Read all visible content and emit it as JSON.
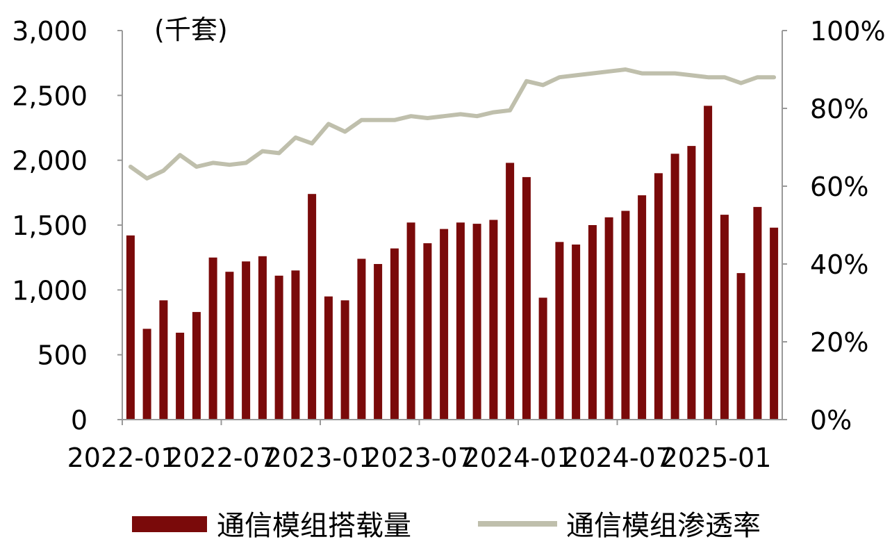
{
  "chart_data": {
    "type": "bar",
    "unit_label": "(千套)",
    "x": [
      "2022-01",
      "2022-02",
      "2022-03",
      "2022-04",
      "2022-05",
      "2022-06",
      "2022-07",
      "2022-08",
      "2022-09",
      "2022-10",
      "2022-11",
      "2022-12",
      "2023-01",
      "2023-02",
      "2023-03",
      "2023-04",
      "2023-05",
      "2023-06",
      "2023-07",
      "2023-08",
      "2023-09",
      "2023-10",
      "2023-11",
      "2023-12",
      "2024-01",
      "2024-02",
      "2024-03",
      "2024-04",
      "2024-05",
      "2024-06",
      "2024-07",
      "2024-08",
      "2024-09",
      "2024-10",
      "2024-11",
      "2024-12",
      "2025-01",
      "2025-02",
      "2025-03",
      "2025-04"
    ],
    "x_tick_labels": [
      "2022-01",
      "2022-07",
      "2023-01",
      "2023-07",
      "2024-01",
      "2024-07",
      "2025-01"
    ],
    "y_left": {
      "ticks": [
        "0",
        "500",
        "1,000",
        "1,500",
        "2,000",
        "2,500",
        "3,000"
      ],
      "ylim": [
        0,
        3000
      ]
    },
    "y_right": {
      "ticks": [
        "0%",
        "20%",
        "40%",
        "60%",
        "80%",
        "100%"
      ],
      "ylim": [
        0,
        100
      ]
    },
    "series": [
      {
        "name": "通信模组搭载量",
        "type": "bar",
        "axis": "left",
        "color": "#7a0a0a",
        "values": [
          1420,
          700,
          920,
          670,
          830,
          1250,
          1140,
          1220,
          1260,
          1110,
          1150,
          1740,
          950,
          920,
          1240,
          1200,
          1320,
          1520,
          1360,
          1470,
          1520,
          1510,
          1540,
          1980,
          1870,
          940,
          1370,
          1350,
          1500,
          1560,
          1610,
          1730,
          1900,
          2050,
          2110,
          2420,
          1580,
          1130,
          1640,
          1480
        ]
      },
      {
        "name": "通信模组渗透率",
        "type": "line",
        "axis": "right",
        "color": "#bfbfac",
        "values": [
          65,
          62,
          64,
          68,
          65,
          66,
          65.5,
          66,
          69,
          68.5,
          72.5,
          71,
          76,
          74,
          77,
          77,
          77,
          78,
          77.5,
          78,
          78.5,
          78,
          79,
          79.5,
          87,
          86,
          88,
          88.5,
          89,
          89.5,
          90,
          89,
          89,
          89,
          88.5,
          88,
          88,
          86.5,
          88,
          88
        ]
      }
    ]
  }
}
